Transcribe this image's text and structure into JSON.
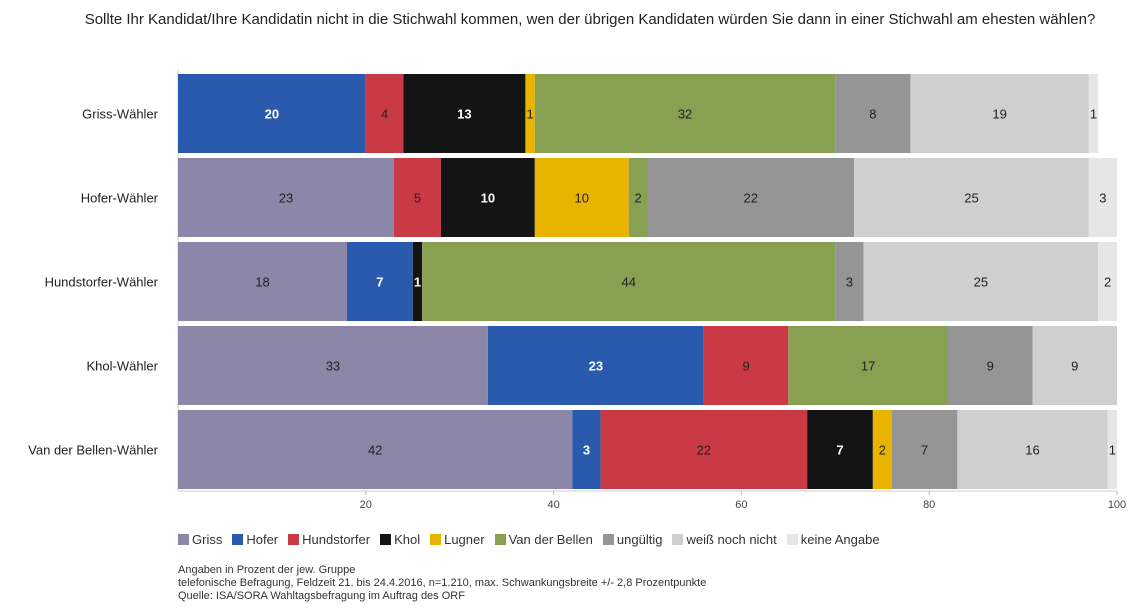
{
  "chart_data": {
    "type": "bar",
    "orientation": "horizontal",
    "stacked": true,
    "title": "Sollte Ihr Kandidat/Ihre Kandidatin nicht in die Stichwahl kommen, wen der übrigen Kandidaten würden Sie dann in einer Stichwahl am ehesten wählen?",
    "categories": [
      "Griss-Wähler",
      "Hofer-Wähler",
      "Hundstorfer-Wähler",
      "Khol-Wähler",
      "Van der Bellen-Wähler"
    ],
    "xlim": [
      0,
      100
    ],
    "x_ticks": [
      "20",
      "40",
      "60",
      "80",
      "100"
    ],
    "legend_position": "bottom",
    "series": [
      {
        "name": "Griss",
        "color": "#8c87a8",
        "values": [
          0,
          23,
          18,
          33,
          42
        ]
      },
      {
        "name": "Hofer",
        "color": "#2a5aad",
        "values": [
          20,
          0,
          7,
          23,
          3
        ]
      },
      {
        "name": "Hundstorfer",
        "color": "#c93a45",
        "values": [
          4,
          5,
          0,
          9,
          22
        ]
      },
      {
        "name": "Khol",
        "color": "#141414",
        "values": [
          13,
          10,
          1,
          0,
          7
        ]
      },
      {
        "name": "Lugner",
        "color": "#e8b400",
        "values": [
          1,
          10,
          0,
          0,
          2
        ]
      },
      {
        "name": "Van der Bellen",
        "color": "#87a052",
        "values": [
          32,
          2,
          44,
          17,
          0
        ]
      },
      {
        "name": "ungültig",
        "color": "#959595",
        "values": [
          8,
          22,
          3,
          9,
          7
        ]
      },
      {
        "name": "weiß noch nicht",
        "color": "#cfcfcf",
        "values": [
          19,
          25,
          25,
          9,
          16
        ]
      },
      {
        "name": "keine Angabe",
        "color": "#e6e6e6",
        "values": [
          1,
          3,
          2,
          0,
          1
        ]
      }
    ]
  },
  "notes": [
    "Angaben in Prozent der jew. Gruppe",
    "telefonische Befragung, Feldzeit 21. bis 24.4.2016, n=1.210, max. Schwankungsbreite +/- 2,8 Prozentpunkte",
    "Quelle: ISA/SORA Wahltagsbefragung im Auftrag des ORF"
  ]
}
